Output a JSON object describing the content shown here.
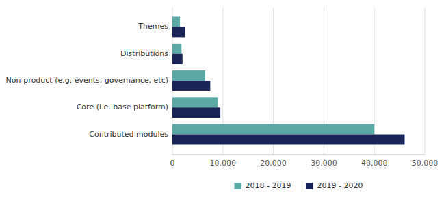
{
  "chart_data": {
    "type": "bar",
    "orientation": "horizontal",
    "categories": [
      "Contributed modules",
      "Core (i.e. base platform)",
      "Non-product (e.g. events, governance, etc)",
      "Distributions",
      "Themes"
    ],
    "series": [
      {
        "name": "2018 - 2019",
        "color": "#5baaa8",
        "values": [
          40000,
          9000,
          6500,
          1800,
          1500
        ]
      },
      {
        "name": "2019 - 2020",
        "color": "#1b2456",
        "values": [
          46000,
          9500,
          7500,
          2000,
          2500
        ]
      }
    ],
    "xlim": [
      0,
      50000
    ],
    "xticks": [
      0,
      {
        "value": 10000,
        "label": "10,000"
      },
      {
        "value": 20000,
        "label": "20,000"
      },
      {
        "value": 30000,
        "label": "30,000"
      },
      {
        "value": 40000,
        "label": "40,000"
      },
      {
        "value": 50000,
        "label": "50,000"
      }
    ],
    "grid": true,
    "legend": "bottom"
  }
}
